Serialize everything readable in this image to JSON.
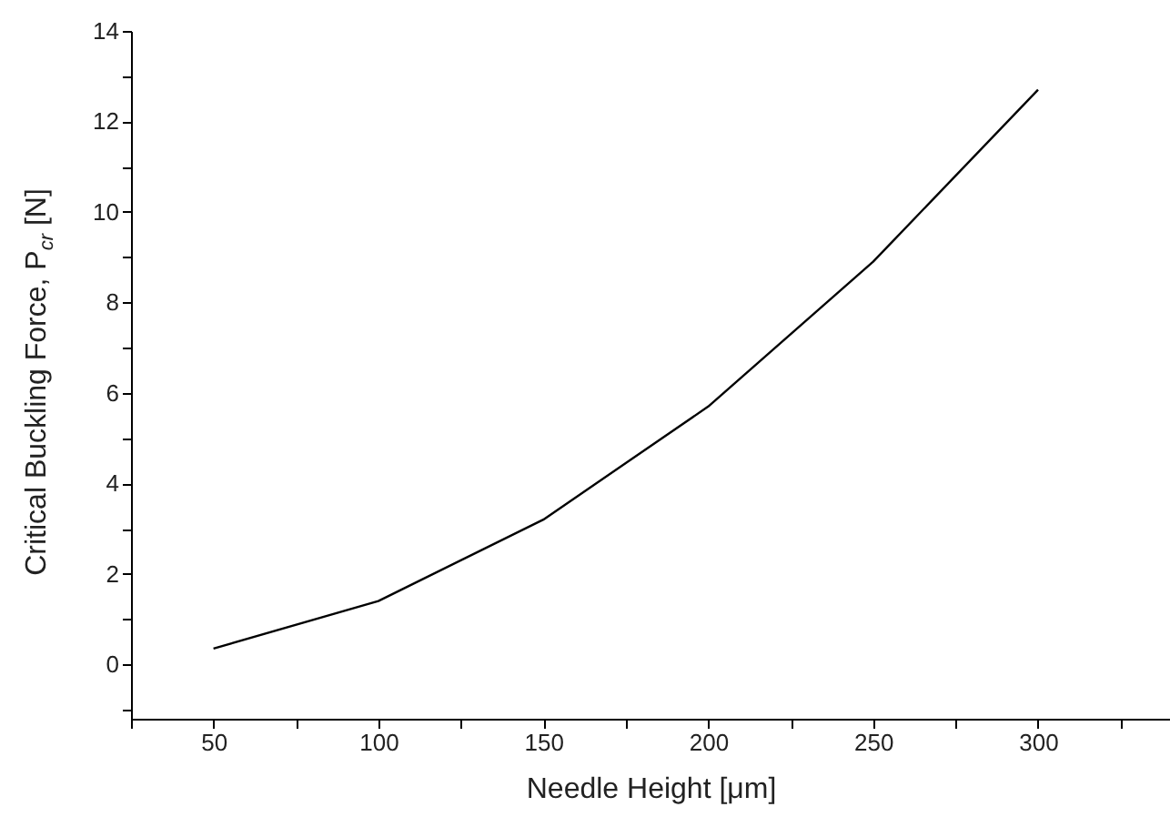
{
  "chart_data": {
    "type": "line",
    "xlabel": "Needle Height [μm]",
    "ylabel": "Critical Buckling Force, P$_{cr}$ [N]",
    "x": [
      50,
      100,
      150,
      200,
      250,
      300
    ],
    "series": [
      {
        "color": "#000000",
        "values": [
          0.35,
          1.4,
          3.2,
          5.7,
          8.9,
          12.7
        ]
      }
    ],
    "xlim": [
      25,
      340
    ],
    "ylim": [
      -1.2,
      14
    ],
    "xticks": [
      {
        "value": 25,
        "label": null
      },
      50,
      {
        "value": 75,
        "label": null
      },
      100,
      {
        "value": 125,
        "label": null
      },
      150,
      {
        "value": 175,
        "label": null
      },
      200,
      {
        "value": 225,
        "label": null
      },
      250,
      {
        "value": 275,
        "label": null
      },
      300,
      {
        "value": 325,
        "label": null
      }
    ],
    "yticks": [
      {
        "value": -1,
        "label": null
      },
      0,
      {
        "value": 1,
        "label": null
      },
      2,
      {
        "value": 3,
        "label": null
      },
      4,
      {
        "value": 5,
        "label": null
      },
      6,
      {
        "value": 7,
        "label": null
      },
      8,
      {
        "value": 9,
        "label": null
      },
      10,
      {
        "value": 11,
        "label": null
      },
      12,
      {
        "value": 13,
        "label": null
      },
      14
    ],
    "grid": false,
    "marker": "none",
    "line_style": "solid"
  }
}
